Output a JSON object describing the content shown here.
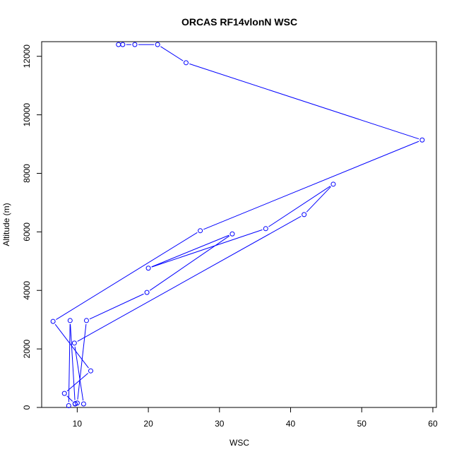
{
  "chart_data": {
    "type": "line",
    "title": "ORCAS RF14vlonN WSC",
    "xlabel": "WSC",
    "ylabel": "Altitude (m)",
    "xlim": [
      5,
      60.5
    ],
    "ylim": [
      0,
      12500
    ],
    "xticks": [
      10,
      20,
      30,
      40,
      50,
      60
    ],
    "yticks": [
      0,
      2000,
      4000,
      6000,
      8000,
      10000,
      12000
    ],
    "grid": false,
    "colors": {
      "series": "#0000ff",
      "axis": "#000000"
    },
    "series": [
      {
        "name": "",
        "points": [
          {
            "x": 15.8,
            "y": 12400
          },
          {
            "x": 16.4,
            "y": 12400
          },
          {
            "x": 18.1,
            "y": 12400
          },
          {
            "x": 21.3,
            "y": 12400
          },
          {
            "x": 25.3,
            "y": 11780
          },
          {
            "x": 58.5,
            "y": 9140
          },
          {
            "x": 27.3,
            "y": 6040
          },
          {
            "x": 6.6,
            "y": 2940
          },
          {
            "x": 11.9,
            "y": 1250
          },
          {
            "x": 8.2,
            "y": 480
          },
          {
            "x": 9.7,
            "y": 120
          },
          {
            "x": 8.8,
            "y": 60
          },
          {
            "x": 9.0,
            "y": 2970
          },
          {
            "x": 9.7,
            "y": 130
          },
          {
            "x": 10.0,
            "y": 150
          },
          {
            "x": 11.3,
            "y": 2970
          },
          {
            "x": 19.8,
            "y": 3930
          },
          {
            "x": 31.8,
            "y": 5930
          },
          {
            "x": 20.0,
            "y": 4760
          },
          {
            "x": 36.5,
            "y": 6110
          },
          {
            "x": 46.0,
            "y": 7630
          },
          {
            "x": 41.9,
            "y": 6590
          },
          {
            "x": 9.6,
            "y": 2200
          },
          {
            "x": 10.9,
            "y": 120
          }
        ]
      }
    ]
  }
}
